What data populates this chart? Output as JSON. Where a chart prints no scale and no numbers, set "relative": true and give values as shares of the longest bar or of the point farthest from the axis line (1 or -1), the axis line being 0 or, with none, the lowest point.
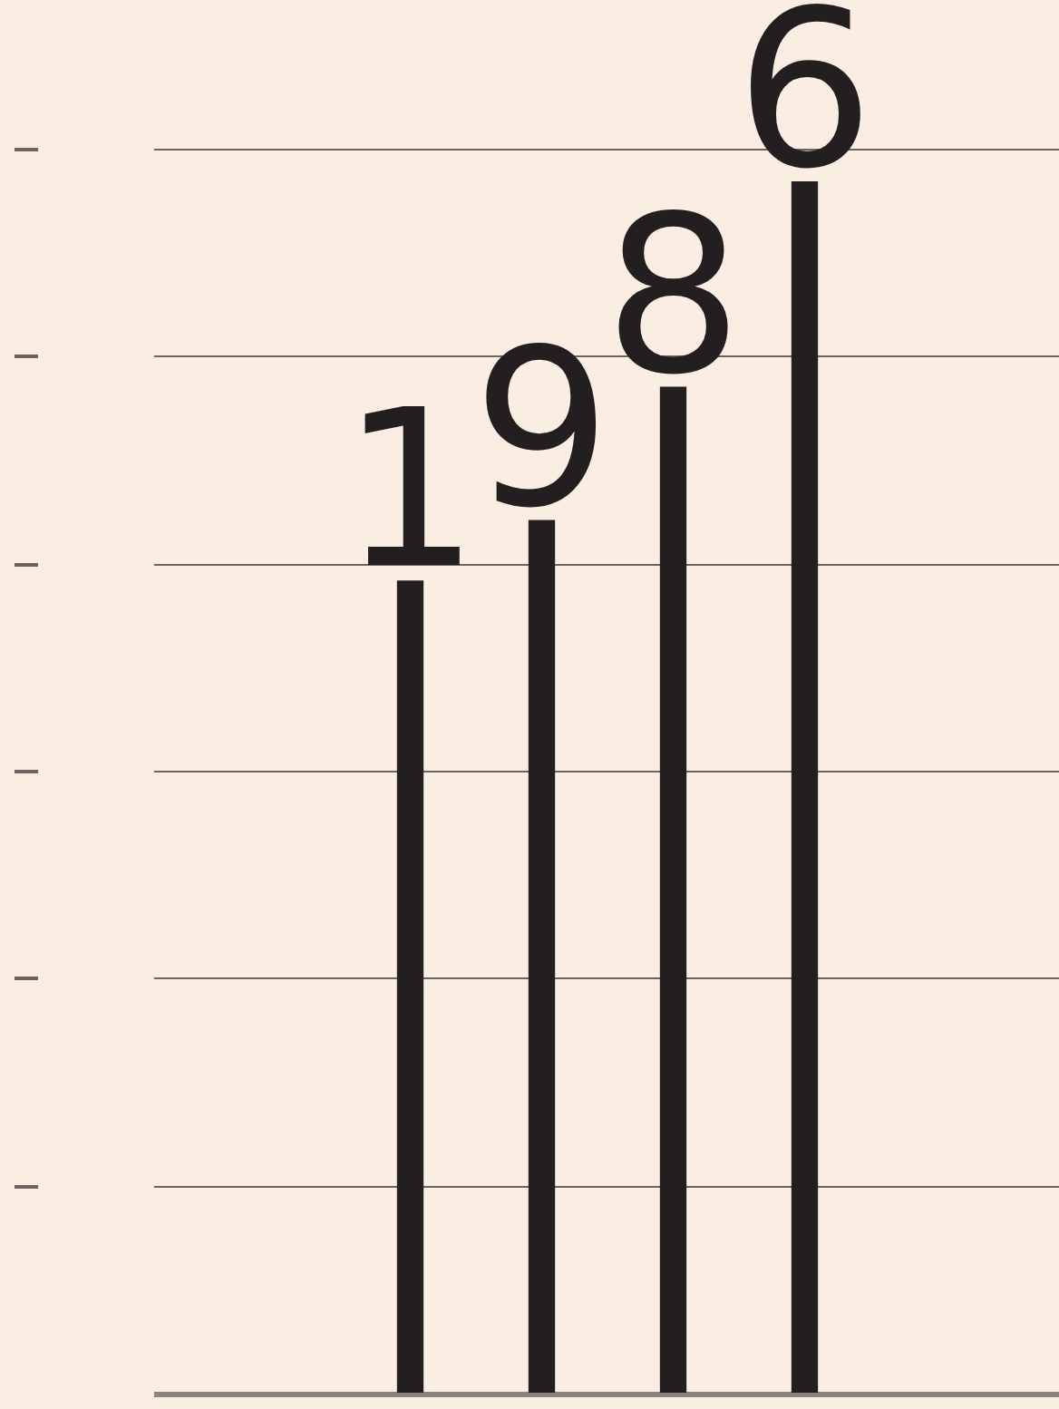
{
  "chart_data": {
    "type": "bar",
    "relative": true,
    "categories": [
      "1",
      "9",
      "8",
      "6"
    ],
    "values": [
      0.67,
      0.72,
      0.83,
      1
    ],
    "color": "#231f20",
    "grid": true
  }
}
